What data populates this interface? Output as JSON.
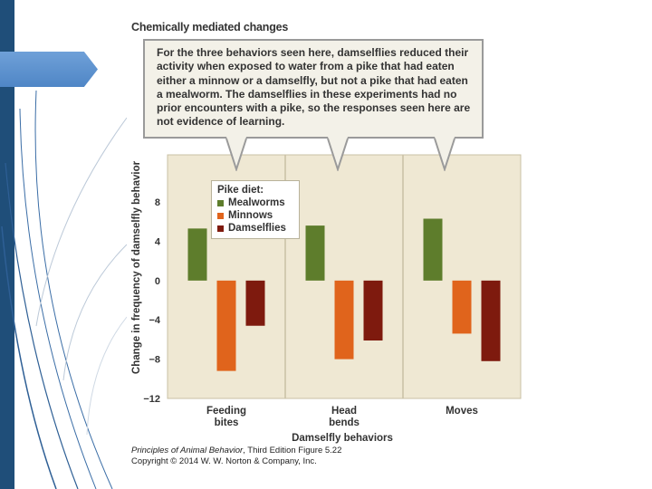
{
  "slide": {
    "colors": {
      "accent_bar": "#1f4e79",
      "arrow_tab": "#5b8fcc",
      "decor_lines": "#2e5f95"
    }
  },
  "figure": {
    "title": "Chemically mediated changes",
    "callout": "For the three behaviors seen here, damselflies reduced their activity when exposed to water from a pike that had eaten either a minnow or a damselfly, but not a pike that had eaten a mealworm. The damselflies in these experiments had no prior encounters with a pike, so the responses seen here are not evidence of learning.",
    "legend_title": "Pike diet:",
    "credit_book": "Principles of Animal Behavior",
    "credit_edition": ", Third Edition",
    "credit_figure": "Figure 5.22",
    "credit_copyright": "Copyright © 2014 W. W. Norton & Company, Inc."
  },
  "chart_data": {
    "type": "bar",
    "categories": [
      "Feeding bites",
      "Head bends",
      "Moves"
    ],
    "category_lines": [
      [
        "Feeding",
        "bites"
      ],
      [
        "Head",
        "bends"
      ],
      [
        "Moves"
      ]
    ],
    "series": [
      {
        "name": "Mealworms",
        "color": "#5e7d2c",
        "values": [
          5.3,
          5.6,
          6.3
        ]
      },
      {
        "name": "Minnows",
        "color": "#e0641c",
        "values": [
          -9.2,
          -8.0,
          -5.4
        ]
      },
      {
        "name": "Damselflies",
        "color": "#7e1a0e",
        "values": [
          -4.6,
          -6.1,
          -8.2
        ]
      }
    ],
    "xlabel": "Damselfly behaviors",
    "ylabel": "Change in frequency of damselfly behavior",
    "ylim": [
      -12,
      12
    ],
    "yticks": [
      8,
      4,
      0,
      -4,
      -8,
      -12
    ],
    "ytick_labels": [
      "8",
      "4",
      "0",
      "−4",
      "−8",
      "−12"
    ],
    "grid": false,
    "plot_background": "#efe8d3",
    "legend_position": "top-left"
  }
}
